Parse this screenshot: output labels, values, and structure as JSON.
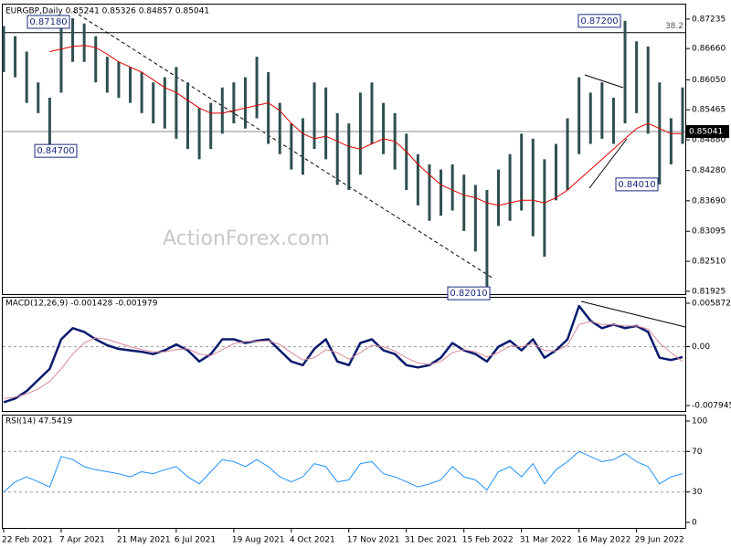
{
  "chart_data": [
    {
      "type": "ohlc",
      "title": "EURGBP,Daily  0.85241 0.85326 0.84857 0.85041",
      "watermark": "ActionForex.com",
      "categories": [
        "22 Feb 2021",
        null,
        null,
        null,
        null,
        "7 Apr 2021",
        null,
        null,
        null,
        null,
        "21 May 2021",
        null,
        null,
        null,
        null,
        "6 Jul 2021",
        null,
        null,
        null,
        null,
        "19 Aug 2021",
        null,
        null,
        null,
        null,
        "4 Oct 2021",
        null,
        null,
        null,
        null,
        "17 Nov 2021",
        null,
        null,
        null,
        null,
        "31 Dec 2021",
        null,
        null,
        null,
        null,
        "15 Feb 2022",
        null,
        null,
        null,
        null,
        "31 Mar 2022",
        null,
        null,
        null,
        null,
        "16 May 2022",
        null,
        null,
        null,
        null,
        "29 Jun 2022",
        null,
        null,
        null,
        null
      ],
      "high": [
        0.871,
        0.869,
        0.866,
        0.86,
        0.857,
        0.8718,
        0.8725,
        0.8715,
        0.869,
        0.865,
        0.864,
        0.863,
        0.862,
        0.86,
        0.861,
        0.863,
        0.86,
        0.855,
        0.856,
        0.859,
        0.86,
        0.861,
        0.865,
        0.862,
        0.856,
        0.852,
        0.853,
        0.86,
        0.859,
        0.854,
        0.852,
        0.858,
        0.86,
        0.856,
        0.854,
        0.85,
        0.846,
        0.844,
        0.843,
        0.844,
        0.842,
        0.84,
        0.839,
        0.843,
        0.846,
        0.85,
        0.849,
        0.845,
        0.848,
        0.853,
        0.861,
        0.858,
        0.86,
        0.857,
        0.872,
        0.868,
        0.867,
        0.86,
        0.853,
        0.859
      ],
      "low": [
        0.862,
        0.861,
        0.856,
        0.854,
        0.847,
        0.858,
        0.864,
        0.864,
        0.86,
        0.858,
        0.857,
        0.856,
        0.854,
        0.852,
        0.851,
        0.849,
        0.847,
        0.845,
        0.847,
        0.85,
        0.852,
        0.851,
        0.853,
        0.848,
        0.846,
        0.843,
        0.842,
        0.847,
        0.845,
        0.84,
        0.839,
        0.842,
        0.848,
        0.846,
        0.843,
        0.839,
        0.836,
        0.833,
        0.834,
        0.835,
        0.831,
        0.827,
        0.8201,
        0.832,
        0.833,
        0.835,
        0.83,
        0.826,
        0.837,
        0.839,
        0.846,
        0.848,
        0.849,
        0.848,
        0.852,
        0.854,
        0.85,
        0.8401,
        0.844,
        0.848
      ],
      "color": "#2f4f4f",
      "series": [
        {
          "color": "#e00000",
          "width": 1,
          "values": [
            null,
            null,
            null,
            null,
            0.866,
            0.8665,
            0.867,
            0.8672,
            0.8668,
            0.8655,
            0.864,
            0.863,
            0.862,
            0.8605,
            0.859,
            0.858,
            0.8565,
            0.855,
            0.854,
            0.854,
            0.8545,
            0.855,
            0.8555,
            0.856,
            0.8545,
            0.852,
            0.85,
            0.849,
            0.8495,
            0.8485,
            0.8475,
            0.847,
            0.848,
            0.849,
            0.8485,
            0.8465,
            0.844,
            0.842,
            0.84,
            0.839,
            0.838,
            0.8375,
            0.8365,
            0.836,
            0.8365,
            0.837,
            0.837,
            0.8365,
            0.8375,
            0.839,
            0.841,
            0.843,
            0.845,
            0.847,
            0.849,
            0.851,
            0.852,
            0.851,
            0.85,
            0.85
          ]
        }
      ],
      "annotations": [
        {
          "value": 0.8718,
          "label": "0.87180"
        },
        {
          "value": 0.847,
          "label": "0.84700"
        },
        {
          "value": 0.8201,
          "label": "0.82010"
        },
        {
          "value": 0.872,
          "label": "0.87200"
        },
        {
          "value": 0.8401,
          "label": "0.84010"
        }
      ],
      "levels": [
        {
          "value": 0.8697,
          "label": "38.2"
        }
      ],
      "last": {
        "value": 0.85041,
        "label": "0.85041"
      },
      "ylim": [
        0.8187,
        0.875
      ],
      "yticks": [
        0.81925,
        {
          "value": 0.8251,
          "label": "0.82510"
        },
        0.83095,
        {
          "value": 0.8369,
          "label": "0.83690"
        },
        {
          "value": 0.8428,
          "label": "0.84280"
        },
        {
          "value": 0.8488,
          "label": "0.84880"
        },
        0.85465,
        {
          "value": 0.8605,
          "label": "0.86050"
        },
        {
          "value": 0.8666,
          "label": "0.86660"
        },
        0.87235
      ],
      "grid": false
    },
    {
      "type": "line",
      "title": "MACD(12,26,9) -0.001428 -0.001979",
      "series": [
        {
          "color": "#0a1a6e",
          "width": 2.5,
          "values": [
            -0.0075,
            -0.007,
            -0.006,
            -0.0045,
            -0.003,
            0.001,
            0.0025,
            0.002,
            0.001,
            0.0002,
            -0.0003,
            -0.0005,
            -0.0007,
            -0.001,
            -0.0005,
            0.0003,
            -0.0005,
            -0.002,
            -0.001,
            0.001,
            0.001,
            0.0005,
            0.0008,
            0.001,
            -0.0005,
            -0.002,
            -0.0025,
            -0.0003,
            0.001,
            -0.002,
            -0.0025,
            0.0005,
            0.001,
            -0.0005,
            -0.001,
            -0.0025,
            -0.0028,
            -0.0025,
            -0.0015,
            0.0005,
            -0.0005,
            -0.001,
            -0.002,
            0.0,
            0.0008,
            -0.0005,
            0.001,
            -0.0015,
            -0.0005,
            0.001,
            0.0055,
            0.0035,
            0.0025,
            0.003,
            0.0025,
            0.0028,
            0.002,
            -0.0015,
            -0.0018,
            -0.0014
          ]
        },
        {
          "color": "#d88a9a",
          "width": 1,
          "values": [
            -0.007,
            -0.0068,
            -0.0064,
            -0.0057,
            -0.0047,
            -0.003,
            -0.001,
            0.0005,
            0.0012,
            0.001,
            0.0005,
            0.0,
            -0.0004,
            -0.0007,
            -0.0007,
            -0.0004,
            -0.0003,
            -0.001,
            -0.0012,
            -0.0004,
            0.0004,
            0.0007,
            0.0007,
            0.0008,
            0.0003,
            -0.0008,
            -0.0018,
            -0.0015,
            -0.0004,
            -0.0008,
            -0.0017,
            -0.0008,
            0.0002,
            0.0,
            -0.0006,
            -0.0015,
            -0.0022,
            -0.0024,
            -0.002,
            -0.0008,
            -0.0004,
            -0.0007,
            -0.0014,
            -0.0008,
            0.0001,
            0.0,
            0.0004,
            -0.0005,
            -0.0006,
            0.0002,
            0.003,
            0.0034,
            0.003,
            0.003,
            0.0028,
            0.0028,
            0.0024,
            0.0005,
            -0.0008,
            -0.002
          ]
        }
      ],
      "ylim": [
        -0.00869,
        0.00661
      ],
      "yticks": [
        -0.007945,
        {
          "value": 0,
          "label": "0.00"
        },
        0.005872
      ],
      "grid": "inner"
    },
    {
      "type": "line",
      "title": "RSI(14) 47.5419",
      "series": [
        {
          "color": "#1e90ff",
          "width": 1,
          "values": [
            30,
            40,
            45,
            40,
            35,
            65,
            62,
            55,
            52,
            50,
            48,
            45,
            50,
            48,
            52,
            55,
            45,
            38,
            50,
            62,
            60,
            55,
            62,
            55,
            45,
            40,
            45,
            58,
            55,
            40,
            42,
            58,
            60,
            48,
            45,
            40,
            35,
            38,
            42,
            55,
            45,
            42,
            32,
            50,
            55,
            45,
            58,
            38,
            52,
            60,
            70,
            65,
            60,
            62,
            68,
            60,
            55,
            38,
            45,
            48
          ]
        }
      ],
      "ylim": [
        -5.4,
        105.4
      ],
      "yticks": [
        0,
        30,
        70,
        100
      ],
      "grid": "inner"
    }
  ]
}
